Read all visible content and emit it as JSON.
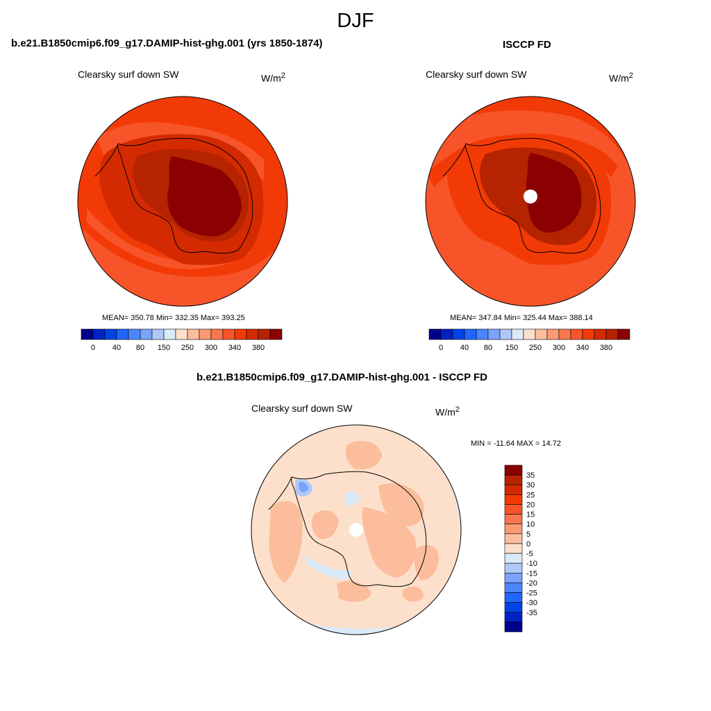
{
  "season": "DJF",
  "colors": {
    "sw_levels": [
      "#00008b",
      "#0022c4",
      "#0044e6",
      "#2266ff",
      "#4c86ff",
      "#7aa3fb",
      "#aec8f9",
      "#daeaf9",
      "#fde0cb",
      "#fbbd9c",
      "#f99a73",
      "#f8774e",
      "#f75529",
      "#f23a07",
      "#d42a02",
      "#b52300",
      "#8b0000"
    ],
    "diff_levels": [
      "#00008b",
      "#0022c4",
      "#0044e6",
      "#2266ff",
      "#4c86ff",
      "#7aa3fb",
      "#aec8f9",
      "#daeaf9",
      "#fde0cb",
      "#fbbd9c",
      "#f99a73",
      "#f8774e",
      "#f75529",
      "#f23a07",
      "#d42a02",
      "#b52300",
      "#8b0000"
    ]
  },
  "panels": {
    "model": {
      "title": "b.e21.B1850cmip6.f09_g17.DAMIP-hist-ghg.001 (yrs 1850-1874)",
      "variable": "Clearsky surf down SW",
      "units_base": "W/m",
      "units_exp": "2",
      "stats": "MEAN= 350.78  Min= 332.35  Max= 393.25",
      "colorbar_ticks": [
        "0",
        "40",
        "80",
        "150",
        "250",
        "300",
        "340",
        "380"
      ]
    },
    "obs": {
      "title": "ISCCP FD",
      "variable": "Clearsky surf down SW",
      "units_base": "W/m",
      "units_exp": "2",
      "stats": "MEAN= 347.84  Min= 325.44  Max= 388.14",
      "colorbar_ticks": [
        "0",
        "40",
        "80",
        "150",
        "250",
        "300",
        "340",
        "380"
      ]
    },
    "diff": {
      "title": "b.e21.B1850cmip6.f09_g17.DAMIP-hist-ghg.001 - ISCCP FD",
      "variable": "Clearsky surf down SW",
      "units_base": "W/m",
      "units_exp": "2",
      "stats": "MIN = -11.64 MAX =  14.72",
      "colorbar_ticks": [
        "35",
        "30",
        "25",
        "20",
        "15",
        "10",
        "5",
        "0",
        "-5",
        "-10",
        "-15",
        "-20",
        "-25",
        "-30",
        "-35"
      ]
    }
  }
}
